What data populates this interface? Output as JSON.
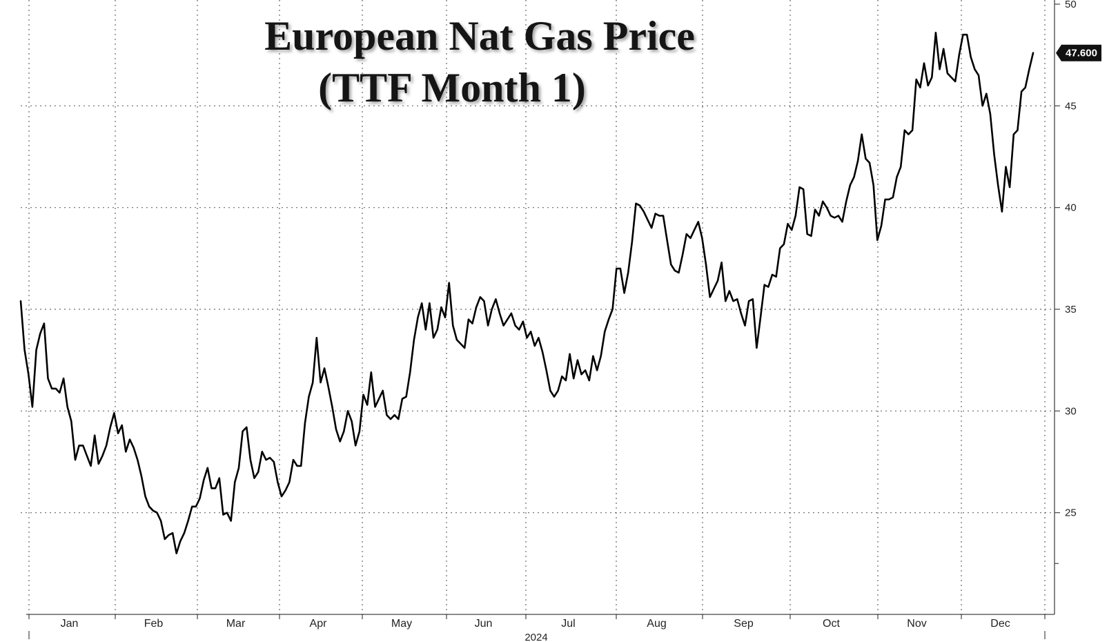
{
  "title": {
    "line1": "European Nat Gas Price",
    "line2": "(TTF Month 1)"
  },
  "chart_data": {
    "type": "line",
    "title": "European Nat Gas Price (TTF Month 1)",
    "xlabel": "2024",
    "ylabel": "",
    "ylim": [
      20,
      50
    ],
    "yticks": [
      25,
      30,
      35,
      40,
      45,
      50
    ],
    "months": [
      "Jan",
      "Feb",
      "Mar",
      "Apr",
      "May",
      "Jun",
      "Jul",
      "Aug",
      "Sep",
      "Oct",
      "Nov",
      "Dec"
    ],
    "grid": true,
    "last_value_label": "47.600",
    "line_color": "#000000",
    "series": [
      {
        "values": [
          35.4,
          33.0,
          31.8,
          30.2,
          33.0,
          33.8,
          34.3,
          31.6,
          31.1,
          31.1,
          30.9,
          31.6,
          30.2,
          29.5,
          27.6,
          28.3,
          28.3,
          27.8,
          27.3,
          28.8,
          27.4,
          27.8,
          28.3,
          29.2,
          29.9,
          28.9,
          29.3,
          28.0,
          28.6,
          28.2,
          27.6,
          26.8,
          25.8,
          25.3,
          25.1,
          25.0,
          24.6,
          23.7,
          23.9,
          24.0,
          23.0,
          23.6,
          24.0,
          24.6,
          25.3,
          25.3,
          25.7,
          26.6,
          27.2,
          26.2,
          26.2,
          26.7,
          24.9,
          25.0,
          24.6,
          26.5,
          27.2,
          29.0,
          29.2,
          27.6,
          26.7,
          27.0,
          28.0,
          27.6,
          27.7,
          27.5,
          26.5,
          25.8,
          26.1,
          26.5,
          27.6,
          27.3,
          27.3,
          29.4,
          30.7,
          31.4,
          33.6,
          31.4,
          32.1,
          31.2,
          30.2,
          29.1,
          28.5,
          29.0,
          30.0,
          29.5,
          28.3,
          29.0,
          30.8,
          30.3,
          31.9,
          30.2,
          30.6,
          31.0,
          29.8,
          29.6,
          29.8,
          29.6,
          30.6,
          30.7,
          31.9,
          33.5,
          34.6,
          35.3,
          34.0,
          35.3,
          33.6,
          34.0,
          35.1,
          34.6,
          36.3,
          34.2,
          33.5,
          33.3,
          33.1,
          34.5,
          34.3,
          35.1,
          35.6,
          35.4,
          34.2,
          35.0,
          35.5,
          34.8,
          34.2,
          34.5,
          34.8,
          34.2,
          34.0,
          34.4,
          33.6,
          33.9,
          33.2,
          33.6,
          32.9,
          32.0,
          31.0,
          30.7,
          31.0,
          31.7,
          31.5,
          32.8,
          31.6,
          32.5,
          31.8,
          32.0,
          31.5,
          32.7,
          32.0,
          32.7,
          33.9,
          34.5,
          35.0,
          37.0,
          37.0,
          35.8,
          36.8,
          38.3,
          40.2,
          40.1,
          39.8,
          39.4,
          39.0,
          39.7,
          39.6,
          39.6,
          38.4,
          37.2,
          36.9,
          36.8,
          37.7,
          38.7,
          38.5,
          38.9,
          39.3,
          38.5,
          37.2,
          35.6,
          36.0,
          36.4,
          37.3,
          35.4,
          35.9,
          35.4,
          35.5,
          34.8,
          34.2,
          35.4,
          35.5,
          33.1,
          34.6,
          36.2,
          36.1,
          36.7,
          36.6,
          38.0,
          38.2,
          39.2,
          38.9,
          39.6,
          41.0,
          40.9,
          38.7,
          38.6,
          39.9,
          39.6,
          40.3,
          40.0,
          39.6,
          39.5,
          39.6,
          39.3,
          40.3,
          41.1,
          41.5,
          42.3,
          43.6,
          42.4,
          42.2,
          41.1,
          38.4,
          39.1,
          40.4,
          40.4,
          40.5,
          41.5,
          42.0,
          43.8,
          43.6,
          43.8,
          46.3,
          45.9,
          47.1,
          46.0,
          46.4,
          48.6,
          46.8,
          47.8,
          46.6,
          46.4,
          46.2,
          47.5,
          48.5,
          48.5,
          47.4,
          46.8,
          46.5,
          45.0,
          45.6,
          44.6,
          42.6,
          41.1,
          39.8,
          42.0,
          41.0,
          43.6,
          43.8,
          45.7,
          45.9,
          46.8,
          47.6
        ]
      }
    ]
  }
}
